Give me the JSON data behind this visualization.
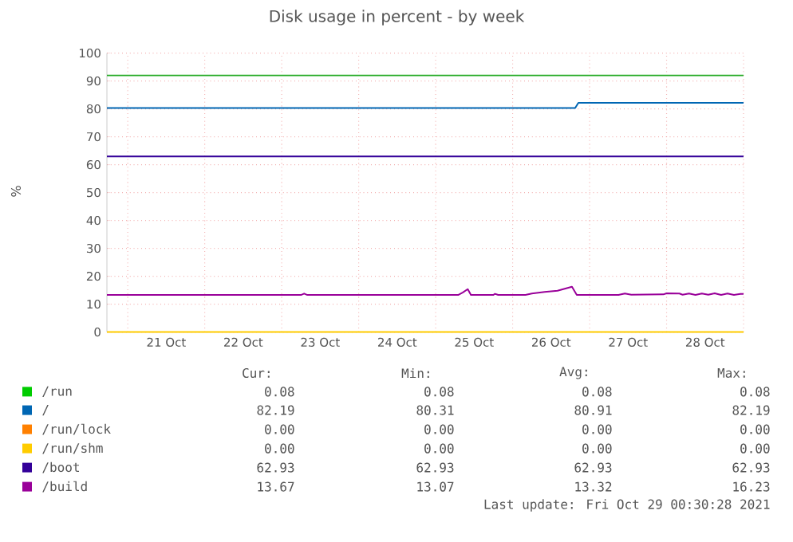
{
  "chart_data": {
    "type": "line",
    "title": "Disk usage in percent - by week",
    "ylabel": "%",
    "xlim": [
      "2021-10-20T17:30",
      "2021-10-29T00:00"
    ],
    "ylim": [
      0,
      100
    ],
    "yticks": [
      0,
      10,
      20,
      30,
      40,
      50,
      60,
      70,
      80,
      90,
      100
    ],
    "xticks": [
      {
        "value": "2021-10-21T00:00",
        "label": null
      },
      {
        "value": "2021-10-21T12:00",
        "label": "21 Oct"
      },
      {
        "value": "2021-10-22T00:00",
        "label": null
      },
      {
        "value": "2021-10-22T12:00",
        "label": "22 Oct"
      },
      {
        "value": "2021-10-23T00:00",
        "label": null
      },
      {
        "value": "2021-10-23T12:00",
        "label": "23 Oct"
      },
      {
        "value": "2021-10-24T00:00",
        "label": null
      },
      {
        "value": "2021-10-24T12:00",
        "label": "24 Oct"
      },
      {
        "value": "2021-10-25T00:00",
        "label": null
      },
      {
        "value": "2021-10-25T12:00",
        "label": "25 Oct"
      },
      {
        "value": "2021-10-26T00:00",
        "label": null
      },
      {
        "value": "2021-10-26T12:00",
        "label": "26 Oct"
      },
      {
        "value": "2021-10-27T00:00",
        "label": null
      },
      {
        "value": "2021-10-27T12:00",
        "label": "27 Oct"
      },
      {
        "value": "2021-10-28T00:00",
        "label": null
      },
      {
        "value": "2021-10-28T12:00",
        "label": "28 Oct"
      },
      {
        "value": "2021-10-29T00:00",
        "label": null
      }
    ],
    "grid": true,
    "legend": "bottom",
    "ref_lines": [
      {
        "axis": "y",
        "value": 92,
        "label": null,
        "color": "#22aa22"
      }
    ],
    "series": [
      {
        "name": "/run",
        "color": "#00cc00",
        "values": [
          null,
          null
        ]
      },
      {
        "name": "/",
        "color": "#0066b3",
        "x": [
          "2021-10-20T17:30",
          "2021-10-26T19:30",
          "2021-10-26T20:30",
          "2021-10-29T00:00"
        ],
        "values": [
          80.31,
          80.31,
          82.19,
          82.19
        ]
      },
      {
        "name": "/run/lock",
        "color": "#ff8000",
        "values": [
          null,
          null
        ]
      },
      {
        "name": "/run/shm",
        "color": "#ffcc00",
        "x": [
          "2021-10-20T17:30",
          "2021-10-29T00:00"
        ],
        "values": [
          0.0,
          0.0
        ]
      },
      {
        "name": "/boot",
        "color": "#330099",
        "x": [
          "2021-10-20T17:30",
          "2021-10-29T00:00"
        ],
        "values": [
          62.93,
          62.93
        ]
      },
      {
        "name": "/build",
        "color": "#990099",
        "x": [
          "2021-10-20T17:30",
          "2021-10-23T06:00",
          "2021-10-23T07:00",
          "2021-10-23T08:00",
          "2021-10-25T07:00",
          "2021-10-25T08:30",
          "2021-10-25T10:00",
          "2021-10-25T11:00",
          "2021-10-25T18:00",
          "2021-10-25T18:30",
          "2021-10-25T19:30",
          "2021-10-26T04:00",
          "2021-10-26T06:00",
          "2021-10-26T10:00",
          "2021-10-26T14:00",
          "2021-10-26T18:30",
          "2021-10-26T20:00",
          "2021-10-27T09:00",
          "2021-10-27T11:00",
          "2021-10-27T13:00",
          "2021-10-27T23:00",
          "2021-10-28T00:00",
          "2021-10-28T04:00",
          "2021-10-28T05:00",
          "2021-10-28T07:00",
          "2021-10-28T09:00",
          "2021-10-28T11:00",
          "2021-10-28T13:00",
          "2021-10-28T15:00",
          "2021-10-28T17:00",
          "2021-10-28T19:00",
          "2021-10-28T21:00",
          "2021-10-28T23:00",
          "2021-10-29T00:00"
        ],
        "values": [
          13.3,
          13.3,
          13.8,
          13.3,
          13.3,
          14.2,
          15.4,
          13.3,
          13.3,
          13.7,
          13.3,
          13.3,
          13.8,
          14.4,
          14.8,
          16.23,
          13.3,
          13.3,
          13.8,
          13.4,
          13.5,
          13.9,
          13.8,
          13.4,
          13.8,
          13.3,
          13.8,
          13.4,
          13.9,
          13.3,
          13.8,
          13.3,
          13.7,
          13.67
        ]
      }
    ],
    "annotations": [
      "Cur:",
      "Min:",
      "Avg:",
      "Max:",
      "0.08",
      "0.08",
      "0.08",
      "0.08",
      "82.19",
      "80.31",
      "80.91",
      "82.19",
      "0.00",
      "0.00",
      "0.00",
      "0.00",
      "0.00",
      "0.00",
      "0.00",
      "0.00",
      "62.93",
      "62.93",
      "62.93",
      "62.93",
      "13.67",
      "13.07",
      "13.32",
      "16.23",
      "Last update: Fri Oct 29 00:30:28 2021"
    ]
  }
}
